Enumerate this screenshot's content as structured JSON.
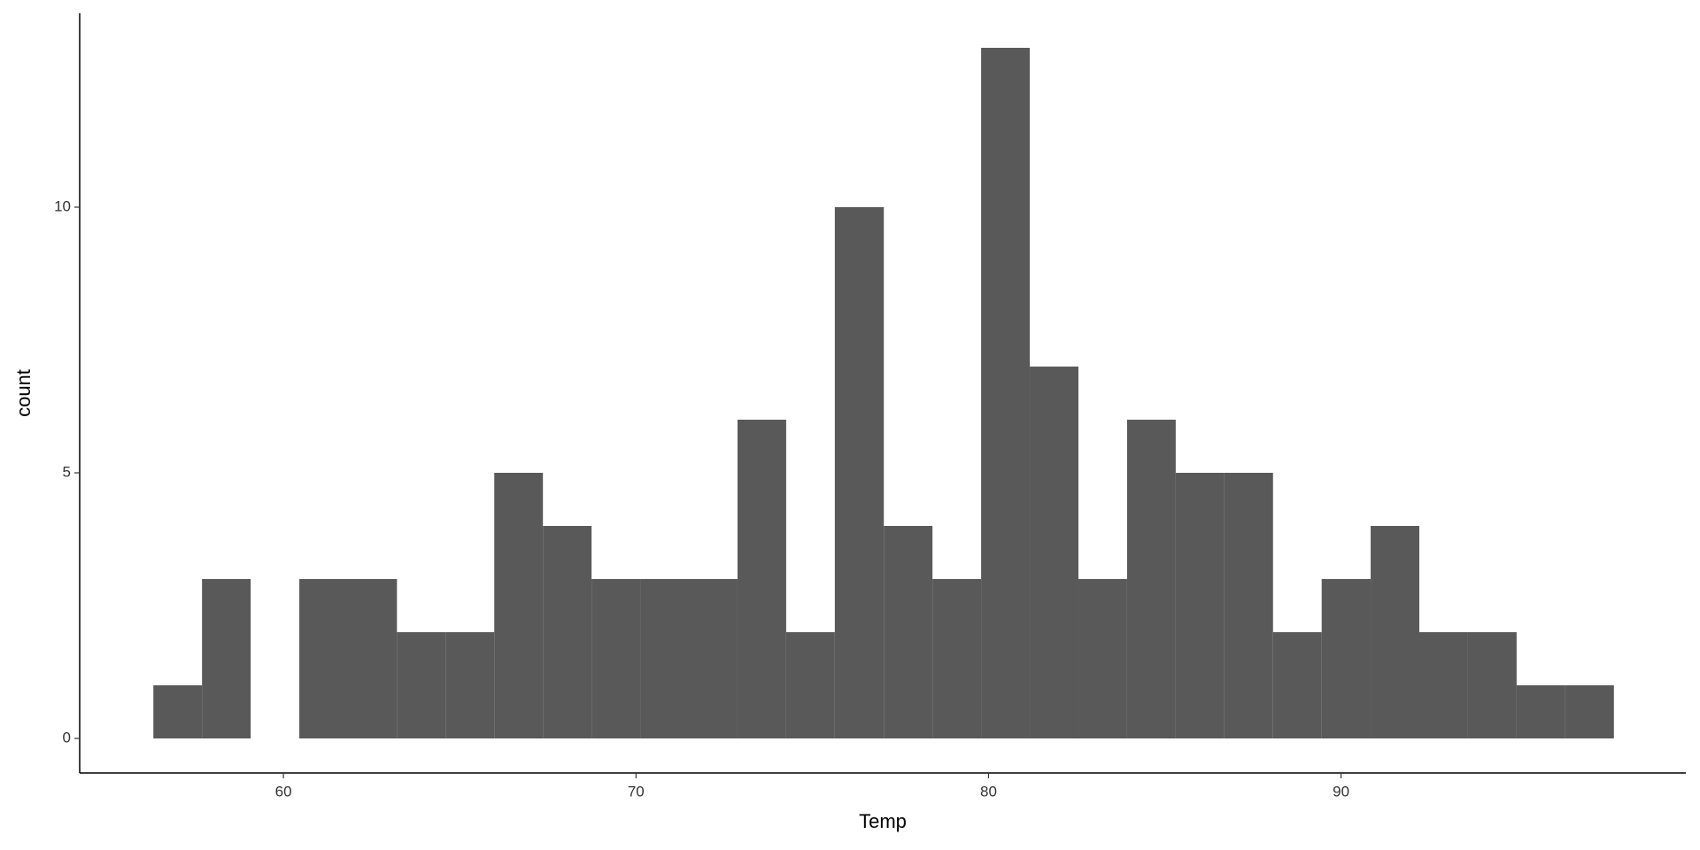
{
  "chart_data": {
    "type": "histogram",
    "x_label": "Temp",
    "y_label": "count",
    "bins": [
      56.31,
      57.69,
      59.07,
      60.45,
      61.83,
      63.22,
      64.6,
      65.98,
      67.36,
      68.74,
      70.12,
      71.5,
      72.88,
      74.26,
      75.64,
      77.03,
      78.41,
      79.79,
      81.17,
      82.55,
      83.93,
      85.31,
      86.69,
      88.07,
      89.45,
      90.84,
      92.22,
      93.6,
      94.98,
      96.36,
      97.74
    ],
    "values": [
      1,
      3,
      0,
      3,
      3,
      2,
      2,
      5,
      4,
      3,
      3,
      3,
      6,
      2,
      10,
      4,
      3,
      13,
      7,
      3,
      6,
      5,
      5,
      2,
      3,
      4,
      2,
      2,
      1,
      1
    ],
    "color": "#595959",
    "xlim": [
      54.22,
      99.78
    ],
    "xticks": [
      60,
      70,
      80,
      90
    ],
    "ylim": [
      -0.65,
      13.65
    ],
    "yticks": [
      0,
      5,
      10
    ],
    "grid": false
  }
}
